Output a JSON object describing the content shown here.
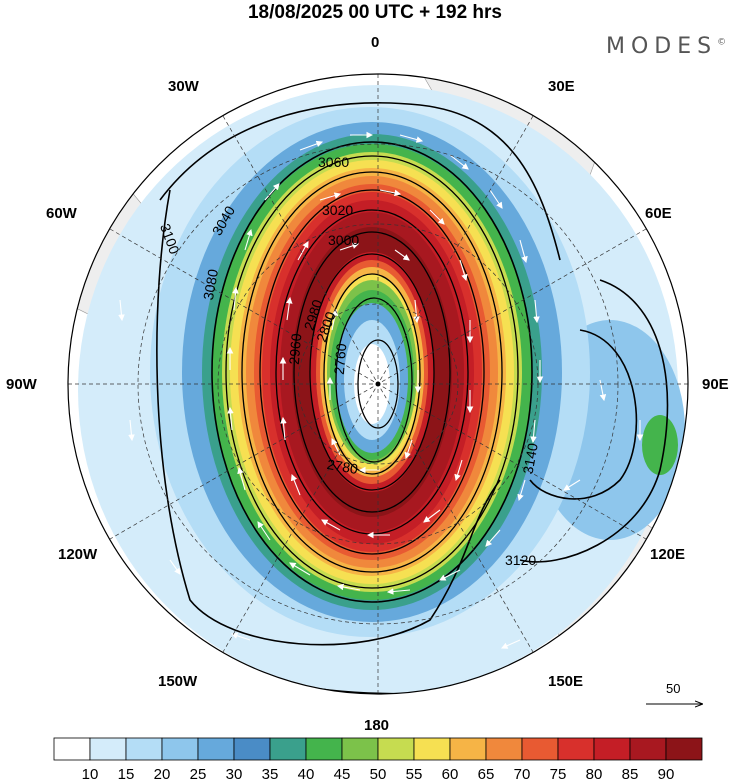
{
  "header": {
    "title": "18/08/2025  00 UTC  + 192 hrs"
  },
  "brand": {
    "name": "MODES",
    "mark": "©"
  },
  "map": {
    "projection": "polar-stereographic-south",
    "longitude_labels": [
      "0",
      "30E",
      "60E",
      "90E",
      "120E",
      "150E",
      "180",
      "150W",
      "120W",
      "90W",
      "60W",
      "30W"
    ],
    "contour_labels": [
      "3060",
      "3040",
      "3020",
      "3000",
      "2980",
      "2960",
      "2800",
      "2780",
      "2760",
      "3080",
      "3100",
      "3120",
      "3140"
    ],
    "land_color": "#eeeeee",
    "contour_color": "#000000",
    "vector_color": "#ffffff"
  },
  "vector_key": {
    "value": "50"
  },
  "colorbar": {
    "colors": [
      "#ffffff",
      "#d4ecfa",
      "#b4ddf6",
      "#8ec6ec",
      "#66a9dc",
      "#4a8cc6",
      "#3aa08c",
      "#44b44c",
      "#7cc24a",
      "#c6dc50",
      "#f6e052",
      "#f6b446",
      "#f0883c",
      "#e85a32",
      "#d8302c",
      "#c41e26",
      "#a81820",
      "#8c1418"
    ],
    "labels": [
      "10",
      "15",
      "20",
      "25",
      "30",
      "35",
      "40",
      "45",
      "50",
      "55",
      "60",
      "65",
      "70",
      "75",
      "80",
      "85",
      "90"
    ]
  }
}
